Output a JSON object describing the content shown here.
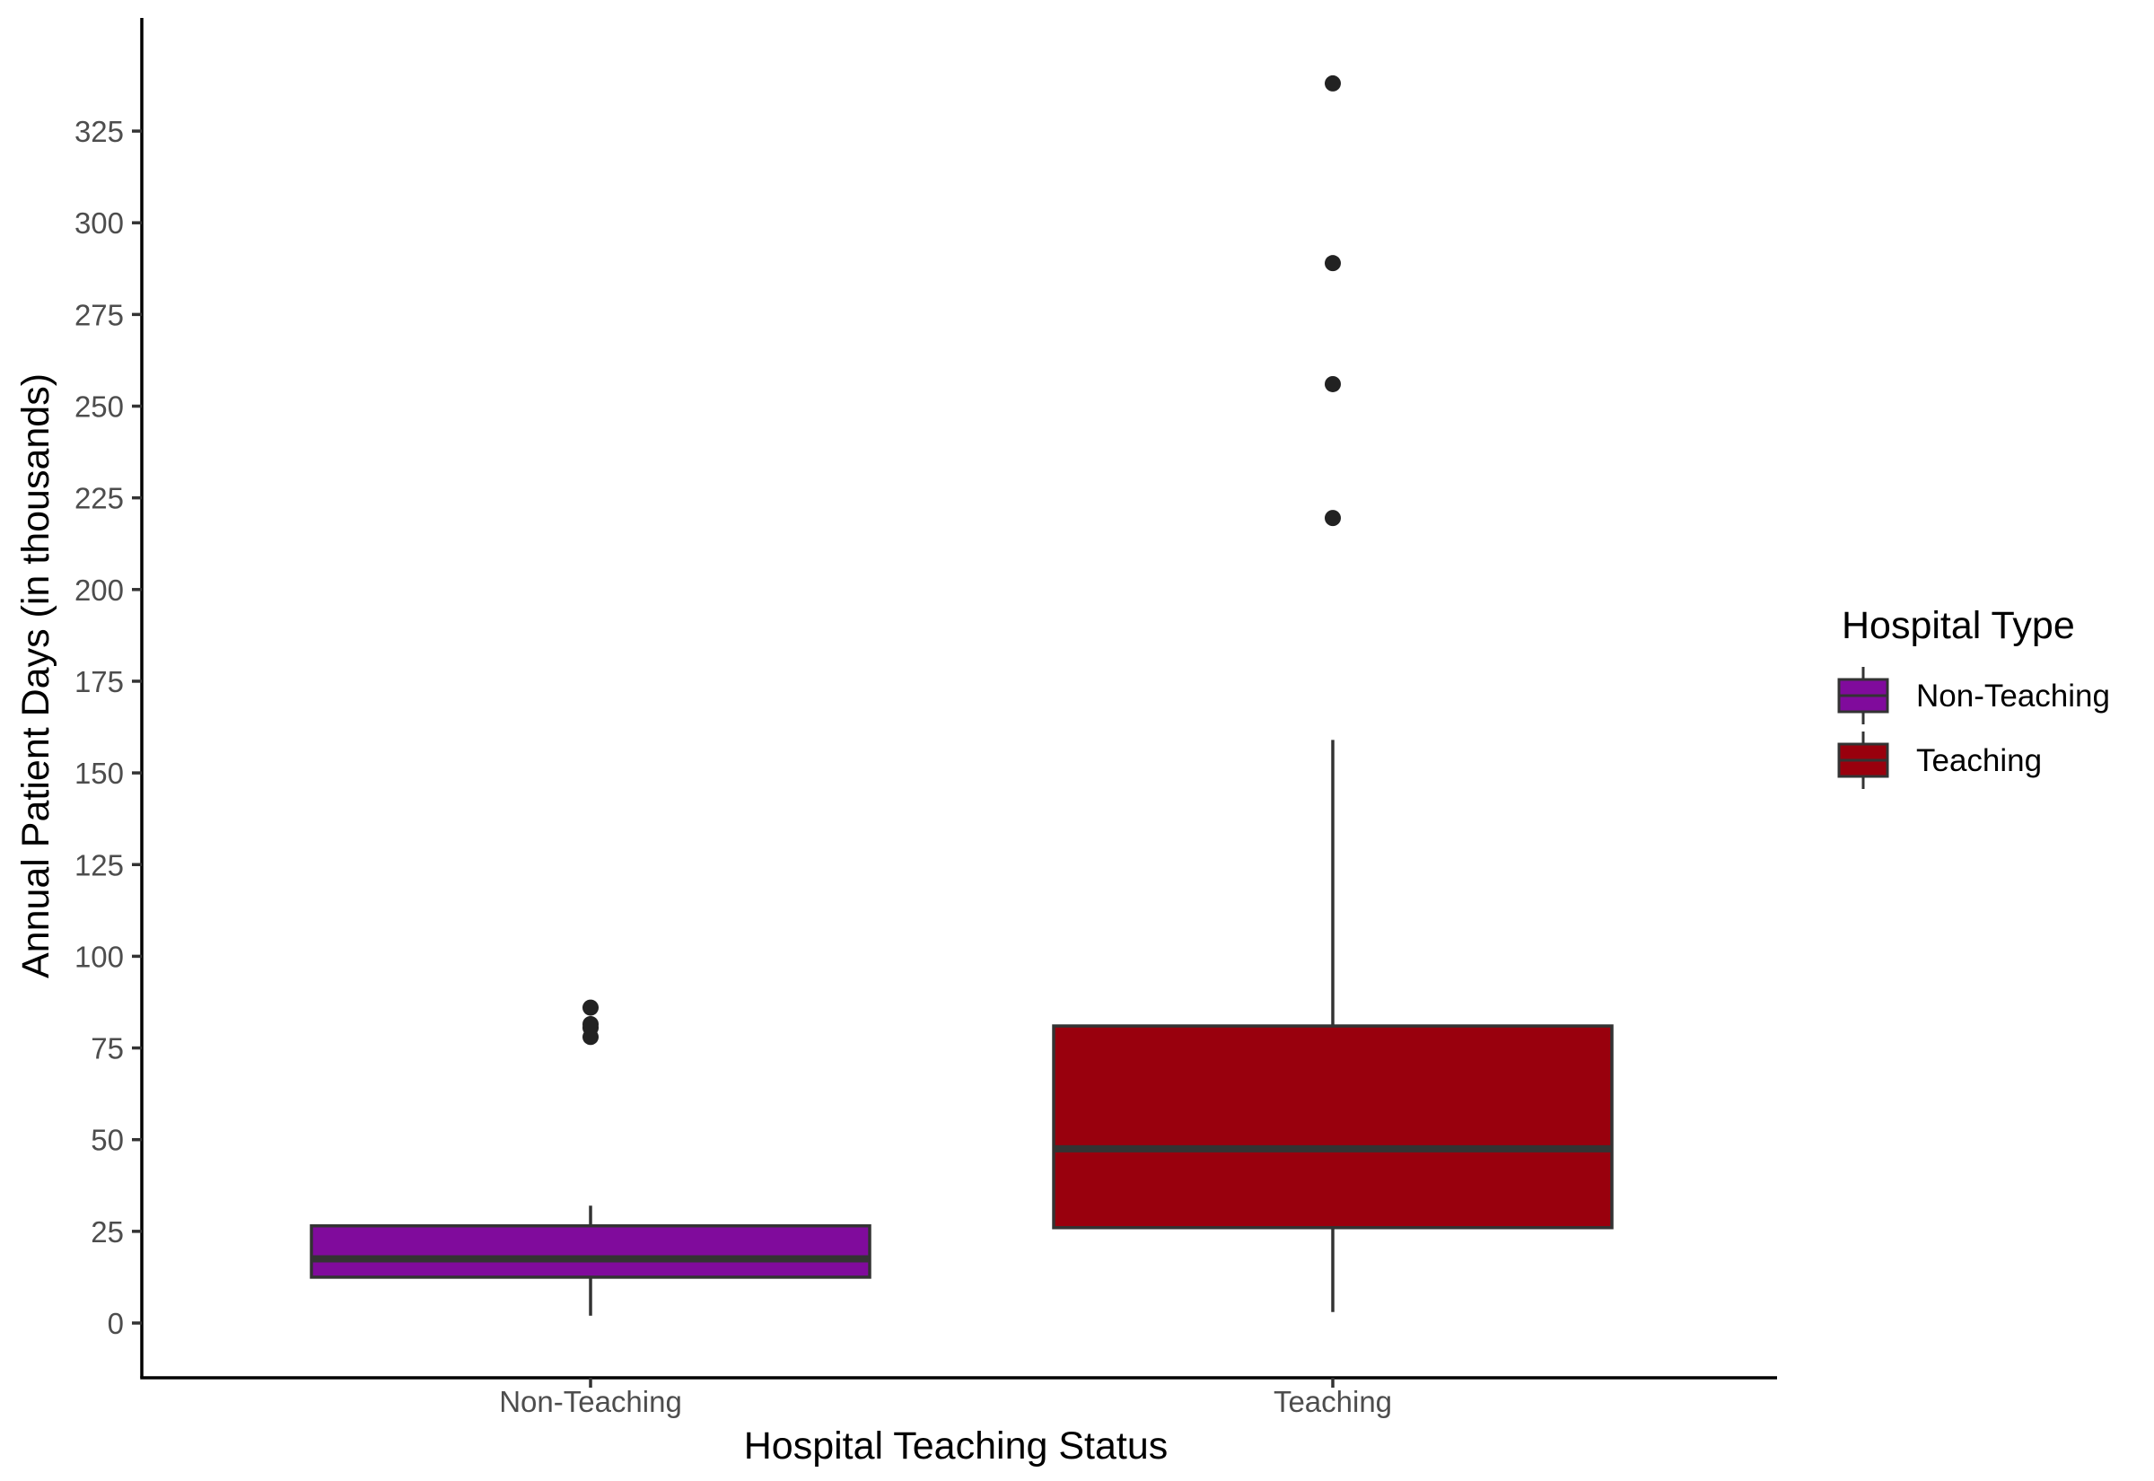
{
  "chart_data": {
    "type": "box",
    "title": "",
    "xlabel": "Hospital Teaching Status",
    "ylabel": "Annual Patient Days (in thousands)",
    "ylim": [
      -15,
      355
    ],
    "yticks": [
      0,
      25,
      50,
      75,
      100,
      125,
      150,
      175,
      200,
      225,
      250,
      275,
      300,
      325
    ],
    "categories": [
      "Non-Teaching",
      "Teaching"
    ],
    "grid": false,
    "legend": {
      "title": "Hospital Type",
      "position": "right",
      "entries": [
        "Non-Teaching",
        "Teaching"
      ]
    },
    "series": [
      {
        "name": "Non-Teaching",
        "color": "#800B9C",
        "whisker_low": 2,
        "q1": 12.5,
        "median": 17.5,
        "q3": 26.5,
        "whisker_high": 32,
        "outliers": [
          78,
          80.5,
          81.5,
          86
        ]
      },
      {
        "name": "Teaching",
        "color": "#99000D",
        "whisker_low": 3,
        "q1": 26,
        "median": 47.5,
        "q3": 81,
        "whisker_high": 159,
        "outliers": [
          219.5,
          256,
          289,
          338
        ]
      }
    ]
  }
}
